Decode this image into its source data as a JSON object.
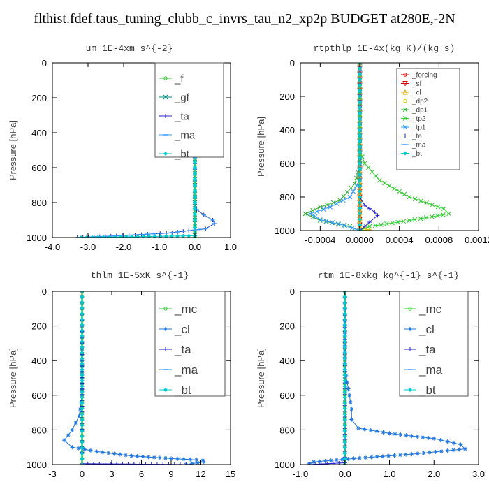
{
  "title": "flthist.fdef.taus_tuning_clubb_c_invrs_tau_n2_xp2p  BUDGET at280E,-2N",
  "chart_data": [
    {
      "type": "line",
      "title": "um   1E-4xm s^{-2}",
      "ylabel": "Pressure [hPa]",
      "xlim": [
        -4.0,
        1.0
      ],
      "ylim": [
        1000,
        0
      ],
      "xticks": [
        "-4.0",
        "-3.0",
        "-2.0",
        "-1.0",
        "0.0",
        "0.0",
        "1.0"
      ],
      "xtick_values": [
        -4.0,
        -3.0,
        -2.0,
        -1.0,
        0.0,
        0.0,
        1.0
      ],
      "yticks": [
        0,
        200,
        400,
        600,
        800,
        1000
      ],
      "legend": "top-right",
      "series": [
        {
          "name": "_f",
          "color": "#33cc33",
          "marker": "circle",
          "x": [
            0,
            0,
            0,
            0,
            0,
            0,
            0,
            0,
            0,
            0,
            0
          ],
          "y": [
            0,
            100,
            200,
            300,
            400,
            500,
            600,
            700,
            800,
            900,
            1000
          ]
        },
        {
          "name": "_gf",
          "color": "#008888",
          "marker": "x",
          "x": [
            0,
            0,
            0
          ],
          "y": [
            0,
            500,
            1000
          ]
        },
        {
          "name": "_ta",
          "color": "#2222cc",
          "marker": "plus",
          "x": [
            0,
            0,
            0.05,
            0.25,
            0.5,
            0.55,
            0.3,
            -0.8,
            -2.2,
            -3.3
          ],
          "y": [
            0,
            800,
            840,
            870,
            900,
            920,
            950,
            975,
            990,
            1000
          ]
        },
        {
          "name": "_ma",
          "color": "#3399ff",
          "marker": "dash",
          "x": [
            0,
            0,
            0.05,
            0.25,
            0.5,
            0.55,
            0.3,
            -0.8,
            -2.2,
            -3.3
          ],
          "y": [
            0,
            800,
            840,
            870,
            900,
            920,
            950,
            975,
            990,
            1000
          ]
        },
        {
          "name": "_bt",
          "color": "#00cccc",
          "marker": "diamond",
          "x": [
            0,
            0,
            0,
            0,
            -0.01,
            -3.2
          ],
          "y": [
            0,
            300,
            600,
            900,
            990,
            1000
          ]
        }
      ]
    },
    {
      "type": "line",
      "title": "rtpthlp   1E-4x(kg K)/(kg s)",
      "ylabel": "Pressure [hPa]",
      "xlim": [
        -0.0006,
        0.0012
      ],
      "ylim": [
        1000,
        0
      ],
      "xticks": [
        "-0.0004",
        "0.0000",
        "0.0004",
        "0.0008",
        "0.0012"
      ],
      "xtick_values": [
        -0.0004,
        0.0,
        0.0004,
        0.0008,
        0.0012
      ],
      "yticks": [
        0,
        200,
        400,
        600,
        800,
        1000
      ],
      "legend": "top-right",
      "series": [
        {
          "name": "_forcing",
          "color": "#cc0000",
          "marker": "circle",
          "x": [
            0,
            0,
            0
          ],
          "y": [
            0,
            500,
            1000
          ]
        },
        {
          "name": "_sf",
          "color": "#cc0000",
          "marker": "triangle-down",
          "x": [
            0,
            0,
            0
          ],
          "y": [
            0,
            500,
            1000
          ]
        },
        {
          "name": "_cl",
          "color": "#ddaa00",
          "marker": "triangle",
          "x": [
            0,
            0,
            5e-05,
            0.0001
          ],
          "y": [
            0,
            960,
            985,
            1000
          ]
        },
        {
          "name": "_dp2",
          "color": "#cccc00",
          "marker": "circle",
          "x": [
            0,
            0,
            0.0001
          ],
          "y": [
            0,
            980,
            1000
          ]
        },
        {
          "name": "_dp1",
          "color": "#33aa33",
          "marker": "x",
          "x": [
            0,
            0,
            -5e-05,
            -0.0002,
            -0.0004,
            -0.00055,
            -0.0004,
            -0.0001,
            0
          ],
          "y": [
            0,
            620,
            720,
            820,
            860,
            900,
            940,
            975,
            1000
          ]
        },
        {
          "name": "_tp2",
          "color": "#33cc33",
          "marker": "x",
          "x": [
            0,
            0,
            5e-05,
            0.0002,
            0.0005,
            0.00085,
            0.0009,
            0.0005,
            0.0001,
            0
          ],
          "y": [
            0,
            520,
            600,
            700,
            800,
            870,
            900,
            940,
            975,
            1000
          ]
        },
        {
          "name": "_tp1",
          "color": "#3399ff",
          "marker": "x",
          "x": [
            0,
            0,
            -0.0001,
            -0.0003,
            -0.0005,
            -0.0004,
            -0.00015,
            0
          ],
          "y": [
            0,
            700,
            800,
            860,
            900,
            935,
            970,
            1000
          ]
        },
        {
          "name": "_ta",
          "color": "#2222cc",
          "marker": "plus",
          "x": [
            0,
            0,
            5e-05,
            0.00015,
            0.00018,
            0.0001,
            0
          ],
          "y": [
            0,
            800,
            850,
            890,
            910,
            950,
            1000
          ]
        },
        {
          "name": "_ma",
          "color": "#3399ff",
          "marker": "dash",
          "x": [
            0,
            0
          ],
          "y": [
            0,
            1000
          ]
        },
        {
          "name": "_bt",
          "color": "#00cccc",
          "marker": "diamond",
          "x": [
            0,
            0
          ],
          "y": [
            0,
            1000
          ]
        }
      ]
    },
    {
      "type": "line",
      "title": "thlm   1E-5xK s^{-1}",
      "ylabel": "Pressure [hPa]",
      "xlim": [
        -3,
        15
      ],
      "ylim": [
        1000,
        0
      ],
      "xticks": [
        "-3",
        "0",
        "3",
        "6",
        "9",
        "12",
        "15"
      ],
      "xtick_values": [
        -3,
        0,
        3,
        6,
        9,
        12,
        15
      ],
      "yticks": [
        0,
        200,
        400,
        600,
        800,
        1000
      ],
      "legend": "top-right",
      "series": [
        {
          "name": "_mc",
          "color": "#33cc33",
          "marker": "circle",
          "x": [
            0,
            0,
            0,
            0,
            0,
            0,
            0,
            0,
            0,
            0,
            0
          ],
          "y": [
            0,
            100,
            200,
            300,
            400,
            500,
            600,
            700,
            800,
            900,
            1000
          ]
        },
        {
          "name": "_cl",
          "color": "#2277dd",
          "marker": "star",
          "x": [
            0,
            0,
            -0.3,
            -1.0,
            -1.8,
            -1.0,
            1.5,
            5.0,
            9.0,
            12.2,
            12.3,
            10.5
          ],
          "y": [
            0,
            600,
            720,
            800,
            860,
            900,
            925,
            950,
            965,
            975,
            985,
            1000
          ]
        },
        {
          "name": "_ta",
          "color": "#2222cc",
          "marker": "plus",
          "x": [
            0,
            0,
            10.5
          ],
          "y": [
            0,
            995,
            1000
          ]
        },
        {
          "name": "_ma",
          "color": "#3399ff",
          "marker": "dash",
          "x": [
            0,
            0
          ],
          "y": [
            0,
            1000
          ]
        },
        {
          "name": "_bt",
          "color": "#00cccc",
          "marker": "diamond",
          "x": [
            0,
            0
          ],
          "y": [
            0,
            1000
          ]
        }
      ]
    },
    {
      "type": "line",
      "title": "rtm   1E-8xkg kg^{-1} s^{-1}",
      "ylabel": "Pressure [hPa]",
      "xlim": [
        -1.0,
        3.0
      ],
      "ylim": [
        1000,
        0
      ],
      "xticks": [
        "-1.0",
        "0.0",
        "1.0",
        "2.0",
        "3.0"
      ],
      "xtick_values": [
        -1.0,
        0.0,
        1.0,
        2.0,
        3.0
      ],
      "yticks": [
        0,
        200,
        400,
        600,
        800,
        1000
      ],
      "legend": "top-right",
      "series": [
        {
          "name": "_mc",
          "color": "#33cc33",
          "marker": "circle",
          "x": [
            0,
            0,
            0,
            0,
            0,
            0,
            0,
            0,
            0,
            0,
            0
          ],
          "y": [
            0,
            100,
            200,
            300,
            400,
            500,
            600,
            700,
            800,
            900,
            1000
          ]
        },
        {
          "name": "_cl",
          "color": "#2277dd",
          "marker": "star",
          "x": [
            0,
            0,
            0.1,
            0.15,
            0.15,
            0.3,
            1.0,
            2.0,
            2.6,
            2.7,
            1.5,
            0.2,
            -0.7,
            -0.8
          ],
          "y": [
            0,
            450,
            600,
            680,
            740,
            790,
            820,
            850,
            885,
            910,
            940,
            965,
            985,
            995
          ]
        },
        {
          "name": "_ta",
          "color": "#2222cc",
          "marker": "plus",
          "x": [
            0,
            0,
            -0.8
          ],
          "y": [
            0,
            990,
            1000
          ]
        },
        {
          "name": "_ma",
          "color": "#3399ff",
          "marker": "dash",
          "x": [
            0,
            0
          ],
          "y": [
            0,
            1000
          ]
        },
        {
          "name": "_bt",
          "color": "#00cccc",
          "marker": "diamond",
          "x": [
            0,
            0
          ],
          "y": [
            0,
            1000
          ]
        }
      ]
    }
  ]
}
